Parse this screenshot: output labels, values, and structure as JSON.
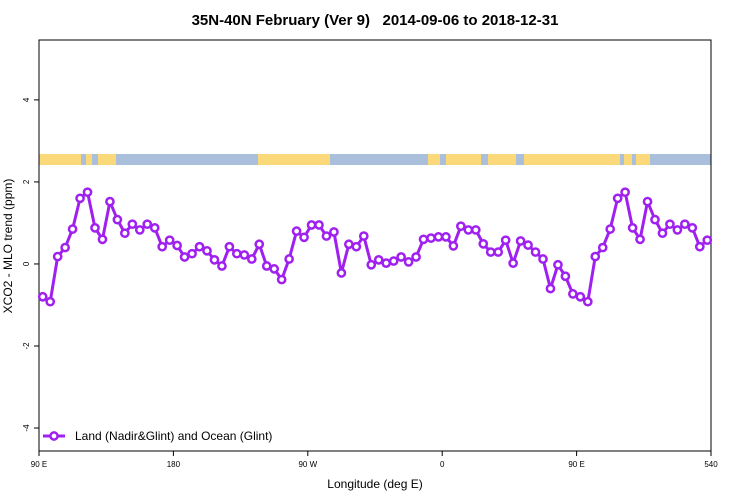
{
  "chart_data": {
    "type": "line",
    "title": "35N-40N February (Ver 9)   2014-09-06 to 2018-12-31",
    "xlabel": "Longitude (deg E)",
    "ylabel": "XCO2 - MLO trend (ppm)",
    "xlim": [
      90,
      540
    ],
    "ylim": [
      -4.56,
      5.46
    ],
    "xticks": [
      {
        "value": 90,
        "label": "90 E"
      },
      180,
      {
        "value": 270,
        "label": "90 W"
      },
      {
        "value": 360,
        "label": "0"
      },
      {
        "value": 450,
        "label": "90 E"
      },
      540
    ],
    "yticks": [
      -4,
      -2,
      0,
      2,
      4
    ],
    "legend": "bottom-left",
    "x": [
      92.5,
      97.5,
      102.5,
      107.5,
      112.5,
      117.5,
      122.5,
      127.5,
      132.5,
      137.5,
      142.5,
      147.5,
      152.5,
      157.5,
      162.5,
      167.5,
      172.5,
      177.5,
      182.5,
      187.5,
      192.5,
      197.5,
      202.5,
      207.5,
      212.5,
      217.5,
      222.5,
      227.5,
      232.5,
      237.5,
      242.5,
      247.5,
      252.5,
      257.5,
      262.5,
      267.5,
      272.5,
      277.5,
      282.5,
      287.5,
      292.5,
      297.5,
      302.5,
      307.5,
      312.5,
      317.5,
      322.5,
      327.5,
      332.5,
      337.5,
      342.5,
      347.5,
      352.5,
      357.5,
      362.5,
      367.5,
      372.5,
      377.5,
      382.5,
      387.5,
      392.5,
      397.5,
      402.5,
      407.5,
      412.5,
      417.5,
      422.5,
      427.5,
      432.5,
      437.5,
      442.5,
      447.5,
      452.5,
      457.5,
      462.5,
      467.5,
      472.5,
      477.5,
      482.5,
      487.5,
      492.5,
      497.5,
      502.5,
      507.5,
      512.5,
      517.5,
      522.5,
      527.5,
      532.5,
      537.5
    ],
    "series": [
      {
        "name": "Land (Nadir&Glint) and Ocean (Glint)",
        "color": "#a020f0",
        "values": [
          -0.8,
          -0.92,
          0.18,
          0.4,
          0.85,
          1.6,
          1.75,
          0.88,
          0.6,
          1.52,
          1.08,
          0.75,
          0.97,
          0.83,
          0.97,
          0.88,
          0.42,
          0.58,
          0.45,
          0.17,
          0.25,
          0.42,
          0.32,
          0.1,
          -0.05,
          0.42,
          0.25,
          0.22,
          0.12,
          0.48,
          -0.05,
          -0.12,
          -0.38,
          0.12,
          0.8,
          0.65,
          0.95,
          0.95,
          0.68,
          0.78,
          -0.22,
          0.48,
          0.42,
          0.68,
          -0.02,
          0.1,
          0.02,
          0.07,
          0.17,
          0.05,
          0.17,
          0.6,
          0.63,
          0.66,
          0.66,
          0.44,
          0.92,
          0.83,
          0.83,
          0.49,
          0.29,
          0.29,
          0.58,
          0.02,
          0.56,
          0.46,
          0.29,
          0.12,
          -0.6,
          -0.02,
          -0.3,
          -0.73,
          -0.8,
          -0.92,
          0.18,
          0.4,
          0.85,
          1.6,
          1.75,
          0.88,
          0.6,
          1.52,
          1.08,
          0.75,
          0.97,
          0.83,
          0.97,
          0.88,
          0.42,
          0.58
        ]
      }
    ]
  }
}
